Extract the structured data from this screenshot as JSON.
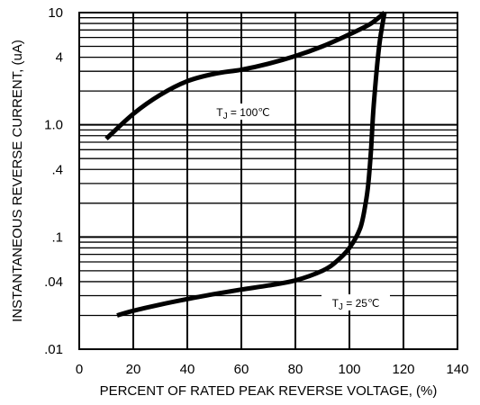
{
  "chart_data": {
    "type": "line",
    "xlabel": "PERCENT OF RATED PEAK REVERSE VOLTAGE, (%)",
    "ylabel": "INSTANTANEOUS REVERSE CURRENT, (uA)",
    "xlim": [
      0,
      140
    ],
    "ylim": [
      0.01,
      10
    ],
    "yscale": "log",
    "grid": true,
    "x_ticks": [
      0,
      20,
      40,
      60,
      80,
      100,
      120,
      140
    ],
    "x_tick_labels": [
      "0",
      "20",
      "40",
      "60",
      "80",
      "100",
      "120",
      "140"
    ],
    "y_ticks": [
      0.01,
      0.04,
      0.1,
      0.4,
      1.0,
      4,
      10
    ],
    "y_tick_labels": [
      ".01",
      ".04",
      ".1",
      ".4",
      "1.0",
      "4",
      "10"
    ],
    "series": [
      {
        "label": "TJ = 100℃",
        "label_main": "T",
        "label_sub": "J",
        "label_rest": " = 100℃",
        "x": [
          10,
          20,
          30,
          40,
          50,
          60,
          70,
          80,
          90,
          100,
          108,
          113
        ],
        "y": [
          0.75,
          1.25,
          1.85,
          2.45,
          2.85,
          3.1,
          3.5,
          4.1,
          5.0,
          6.4,
          8.0,
          10.0
        ]
      },
      {
        "label": "TJ = 25℃",
        "label_main": "T",
        "label_sub": "J",
        "label_rest": " = 25℃",
        "x": [
          14,
          20,
          30,
          40,
          50,
          60,
          70,
          80,
          90,
          95,
          100,
          104,
          106,
          107,
          108,
          109,
          111,
          113
        ],
        "y": [
          0.02,
          0.022,
          0.025,
          0.028,
          0.031,
          0.034,
          0.037,
          0.041,
          0.05,
          0.06,
          0.08,
          0.12,
          0.2,
          0.3,
          0.6,
          1.5,
          5.0,
          10.0
        ]
      }
    ]
  }
}
